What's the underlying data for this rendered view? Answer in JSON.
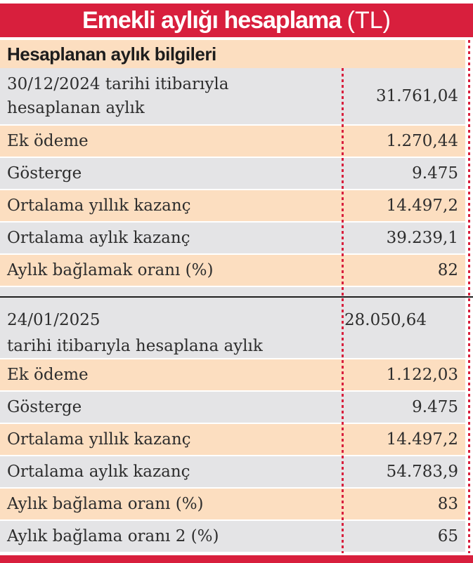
{
  "title": {
    "main": "Emekli aylığı hesaplama",
    "suffix": "(TL)"
  },
  "subheader": "Hesaplanan aylık bilgileri",
  "colors": {
    "red": "#d81f3d",
    "peach": "#fcdec0",
    "gray": "#e4e4e6",
    "text": "#2d2d2d",
    "divider": "#1f1f1f"
  },
  "chart_data": {
    "type": "table",
    "title": "Emekli aylığı hesaplama (TL)",
    "subtitle": "Hesaplanan aylık bilgileri",
    "columns": [
      "label",
      "value"
    ],
    "sections": [
      {
        "rows": [
          {
            "label": "30/12/2024 tarihi itibarıyla hesaplanan aylık",
            "label_lines": [
              "30/12/2024 tarihi itibarıyla",
              "hesaplanan aylık"
            ],
            "value": "31.761,04",
            "bg": "gray",
            "tall": 1,
            "value_align": "right"
          },
          {
            "label": "Ek ödeme",
            "value": "1.270,44",
            "bg": "peach"
          },
          {
            "label": "Gösterge",
            "value": "9.475",
            "bg": "gray"
          },
          {
            "label": "Ortalama yıllık kazanç",
            "value": "14.497,2",
            "bg": "peach"
          },
          {
            "label": "Ortalama aylık kazanç",
            "value": "39.239,1",
            "bg": "gray"
          },
          {
            "label": "Aylık bağlamak oranı (%)",
            "value": "82",
            "bg": "peach"
          }
        ]
      },
      {
        "rows": [
          {
            "label": "24/01/2025 tarihi itibarıyla hesaplana aylık",
            "label_lines": [
              "24/01/2025",
              "tarihi itibarıyla hesaplana aylık"
            ],
            "value": "28.050,64",
            "bg": "gray",
            "tall": 2,
            "value_align": "left"
          },
          {
            "label": "Ek ödeme",
            "value": "1.122,03",
            "bg": "peach"
          },
          {
            "label": "Gösterge",
            "value": "9.475",
            "bg": "gray"
          },
          {
            "label": "Ortalama yıllık kazanç",
            "value": "14.497,2",
            "bg": "peach"
          },
          {
            "label": "Ortalama aylık kazanç",
            "value": "54.783,9",
            "bg": "gray"
          },
          {
            "label": "Aylık bağlama oranı (%)",
            "value": "83",
            "bg": "peach"
          },
          {
            "label": "Aylık bağlama oranı 2 (%)",
            "value": "65",
            "bg": "gray"
          }
        ]
      }
    ]
  }
}
